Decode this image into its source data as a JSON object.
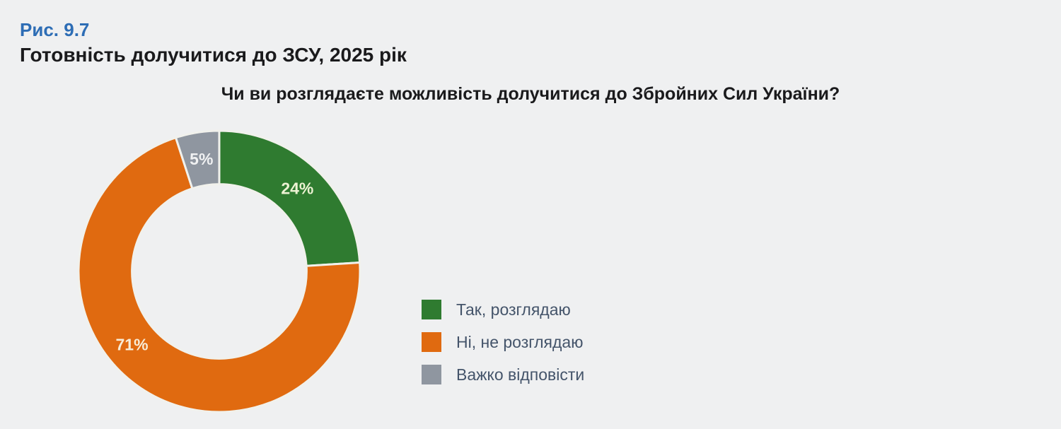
{
  "header": {
    "figure_number": "Рис. 9.7",
    "figure_title": "Готовність долучитися до ЗСУ, 2025 рік"
  },
  "chart_data": {
    "type": "pie",
    "subtype": "donut",
    "title": "Чи ви розглядаєте можливість долучитися до Збройних Сил України?",
    "segments": [
      {
        "label": "Так, розглядаю",
        "value": 24,
        "color": "#2f7b30",
        "label_color": "#edf2d3",
        "label_angle_deg": 43.2
      },
      {
        "label": "Ні, не розглядаю",
        "value": 71,
        "color": "#e06a10",
        "label_color": "#f8ecd7",
        "label_angle_deg": 230
      },
      {
        "label": "Важко відповісти",
        "value": 5,
        "color": "#8f96a0",
        "label_color": "#f0f1f2",
        "label_angle_deg": 351
      }
    ],
    "start_angle_deg": 0,
    "direction": "clockwise",
    "donut_hole_ratio": 0.62,
    "legend_position": "right",
    "value_suffix": "%"
  },
  "colors": {
    "background": "#eff0f1",
    "figure_number": "#2d6db5",
    "title_text": "#1a1a1c",
    "legend_text": "#44546a",
    "segment_separator": "#f1f1ec"
  }
}
